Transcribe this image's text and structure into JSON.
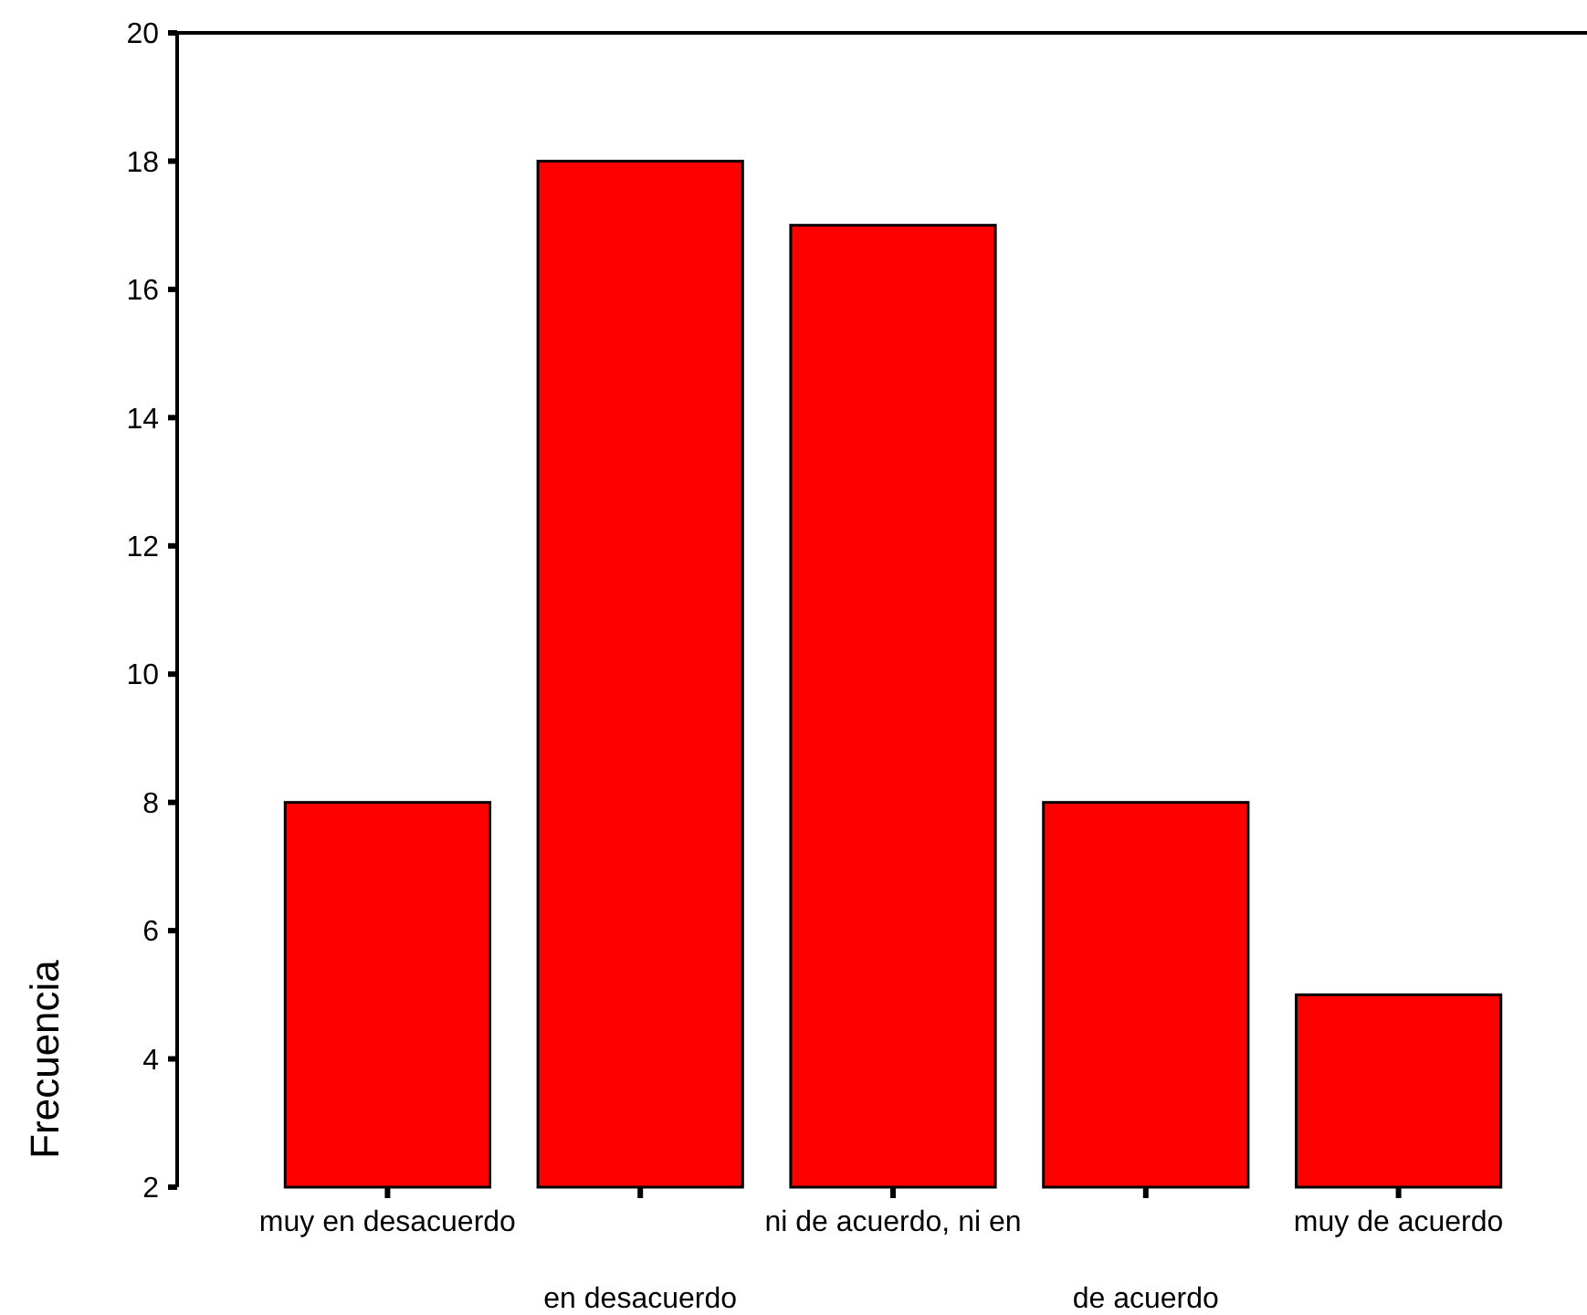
{
  "chart_data": {
    "type": "bar",
    "ylabel": "Frecuencia",
    "categories": [
      "muy en desacuerdo",
      "en desacuerdo",
      "ni de acuerdo, ni en",
      "de acuerdo",
      "muy de acuerdo"
    ],
    "values": [
      8,
      18,
      17,
      8,
      5
    ],
    "color": "#ff0000",
    "ylim": [
      2,
      20
    ],
    "yticks": [
      2,
      4,
      6,
      8,
      10,
      12,
      14,
      16,
      18,
      20
    ],
    "grid": false
  }
}
